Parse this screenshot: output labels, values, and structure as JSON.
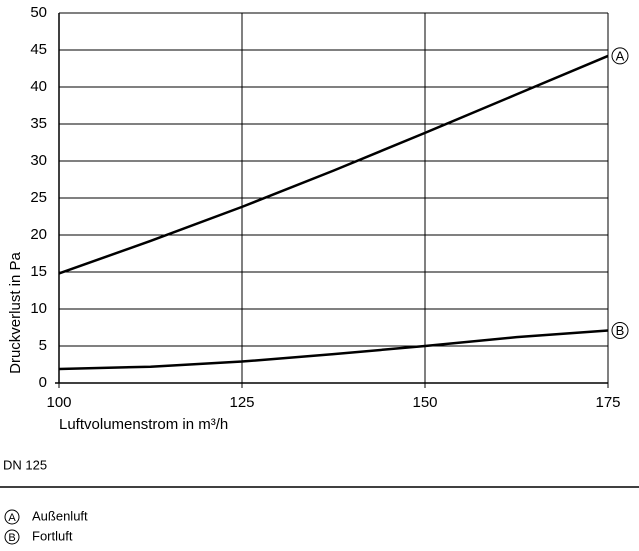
{
  "chart_data": {
    "type": "line",
    "x": [
      100,
      112.5,
      125,
      137.5,
      150,
      162.5,
      175
    ],
    "series": [
      {
        "name": "Außenluft",
        "marker": "A",
        "color": "#000000",
        "values": [
          14.8,
          19.2,
          23.8,
          28.7,
          33.8,
          39.0,
          44.2
        ]
      },
      {
        "name": "Fortluft",
        "marker": "B",
        "color": "#000000",
        "values": [
          1.9,
          2.2,
          2.9,
          3.9,
          5.0,
          6.2,
          7.1
        ]
      }
    ],
    "xlim": [
      100,
      175
    ],
    "xticks": [
      100,
      125,
      150,
      175
    ],
    "ylim": [
      0,
      50
    ],
    "yticks": [
      0,
      5,
      10,
      15,
      20,
      25,
      30,
      35,
      40,
      45,
      50
    ],
    "xlabel": "Luftvolumenstrom in m³/h",
    "ylabel": "Druckverlust in Pa",
    "note": "DN 125",
    "grid": true
  }
}
